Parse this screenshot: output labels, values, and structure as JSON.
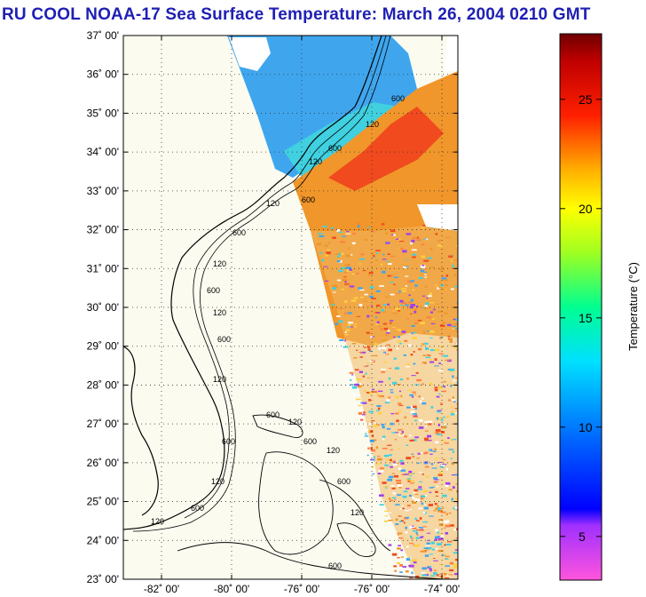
{
  "title": "RU COOL  NOAA-17  Sea Surface Temperature:  March 26, 2004 0210 GMT",
  "map": {
    "lat_ticks": [
      "37˚ 00'",
      "36˚ 00'",
      "35˚ 00'",
      "34˚ 00'",
      "33˚ 00'",
      "32˚ 00'",
      "31˚ 00'",
      "30˚ 00'",
      "29˚ 00'",
      "28˚ 00'",
      "27˚ 00'",
      "26˚ 00'",
      "25˚ 00'",
      "24˚ 00'",
      "23˚ 00'"
    ],
    "lon_ticks": [
      "-82˚ 00'",
      "-80˚ 00'",
      "-76˚ 00'",
      "-76˚ 00'",
      "-74˚ 00'"
    ],
    "contour_labels": [
      "600",
      "120",
      "600",
      "120",
      "600",
      "120",
      "600",
      "120",
      "600",
      "120",
      "600",
      "120",
      "600",
      "120",
      "600",
      "120",
      "600",
      "120",
      "600",
      "120",
      "600",
      "120",
      "600"
    ],
    "grid": "dotted"
  },
  "colorbar": {
    "title": "Temperature (°C)",
    "ticks": [
      "25",
      "20",
      "15",
      "10",
      "5"
    ],
    "range": [
      3,
      28
    ],
    "tick_values": [
      25,
      20,
      15,
      10,
      5
    ]
  },
  "colors": {
    "title": "#1f1fb4",
    "land": "#fbfbf0",
    "coast": "#000000"
  }
}
